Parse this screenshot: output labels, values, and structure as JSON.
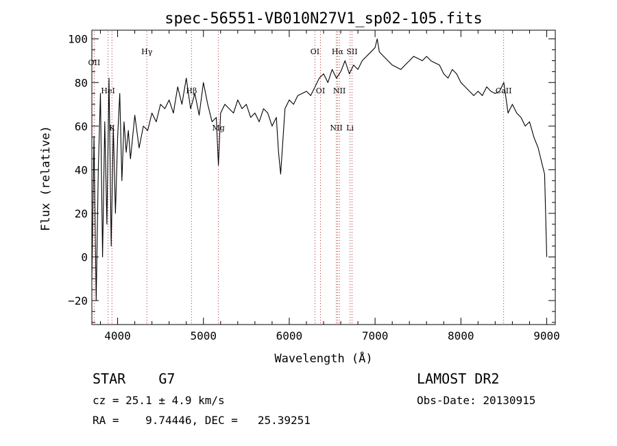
{
  "chart_data": {
    "type": "line",
    "title": "spec-56551-VB010N27V1_sp02-105.fits",
    "xlabel": "Wavelength (Å)",
    "ylabel": "Flux (relative)",
    "xlim": [
      3700,
      9100
    ],
    "ylim": [
      -31,
      104
    ],
    "xticks": [
      4000,
      5000,
      6000,
      7000,
      8000,
      9000
    ],
    "yticks": [
      -20,
      0,
      20,
      40,
      60,
      80,
      100
    ],
    "grid": false,
    "line_color": "#000000",
    "marker_color": "#b22222",
    "lines": [
      {
        "label": "OII",
        "x": 3727,
        "y": 88
      },
      {
        "label": "K",
        "x": 3934,
        "y": 58
      },
      {
        "label": "HeI",
        "x": 3889,
        "y": 75
      },
      {
        "label": "Hγ",
        "x": 4341,
        "y": 93
      },
      {
        "label": "Hβ",
        "x": 4861,
        "y": 75
      },
      {
        "label": "Mg",
        "x": 5175,
        "y": 58
      },
      {
        "label": "OI",
        "x": 6364,
        "y": 75
      },
      {
        "label": "OI",
        "x": 6300,
        "y": 93
      },
      {
        "label": "NII",
        "x": 6548,
        "y": 58
      },
      {
        "label": "NII",
        "x": 6584,
        "y": 75
      },
      {
        "label": "Hα",
        "x": 6563,
        "y": 93
      },
      {
        "label": "Li",
        "x": 6708,
        "y": 58
      },
      {
        "label": "SII",
        "x": 6731,
        "y": 93
      },
      {
        "label": "CaII",
        "x": 8498,
        "y": 75
      }
    ],
    "x": [
      3700,
      3725,
      3750,
      3775,
      3800,
      3825,
      3850,
      3875,
      3900,
      3925,
      3950,
      3975,
      4000,
      4025,
      4050,
      4075,
      4100,
      4125,
      4150,
      4175,
      4200,
      4250,
      4300,
      4350,
      4400,
      4450,
      4500,
      4550,
      4600,
      4650,
      4700,
      4750,
      4800,
      4850,
      4900,
      4950,
      5000,
      5050,
      5100,
      5150,
      5175,
      5200,
      5250,
      5300,
      5350,
      5400,
      5450,
      5500,
      5550,
      5600,
      5650,
      5700,
      5750,
      5800,
      5850,
      5875,
      5900,
      5950,
      6000,
      6050,
      6100,
      6150,
      6200,
      6250,
      6300,
      6350,
      6400,
      6450,
      6500,
      6550,
      6600,
      6650,
      6700,
      6750,
      6800,
      6850,
      6900,
      6950,
      7000,
      7025,
      7050,
      7100,
      7150,
      7200,
      7250,
      7300,
      7350,
      7400,
      7450,
      7500,
      7550,
      7600,
      7650,
      7700,
      7750,
      7800,
      7850,
      7900,
      7950,
      8000,
      8050,
      8100,
      8150,
      8200,
      8250,
      8300,
      8350,
      8400,
      8450,
      8500,
      8550,
      8600,
      8650,
      8700,
      8750,
      8800,
      8850,
      8900,
      8950,
      8975,
      9000
    ],
    "y": [
      -10,
      55,
      -20,
      40,
      75,
      0,
      62,
      15,
      82,
      5,
      60,
      20,
      55,
      75,
      35,
      62,
      48,
      58,
      45,
      55,
      65,
      50,
      60,
      58,
      66,
      62,
      70,
      68,
      72,
      66,
      78,
      70,
      82,
      68,
      75,
      65,
      80,
      70,
      62,
      64,
      42,
      66,
      70,
      68,
      66,
      72,
      68,
      70,
      64,
      66,
      62,
      68,
      66,
      60,
      64,
      48,
      38,
      68,
      72,
      70,
      74,
      75,
      76,
      74,
      78,
      82,
      84,
      80,
      86,
      82,
      85,
      90,
      84,
      88,
      86,
      90,
      92,
      94,
      96,
      100,
      94,
      92,
      90,
      88,
      87,
      86,
      88,
      90,
      92,
      91,
      90,
      92,
      90,
      89,
      88,
      84,
      82,
      86,
      84,
      80,
      78,
      76,
      74,
      76,
      74,
      78,
      76,
      75,
      76,
      80,
      66,
      70,
      66,
      64,
      60,
      62,
      55,
      50,
      42,
      38,
      0
    ]
  },
  "info": {
    "class": "STAR    G7",
    "survey": "LAMOST DR2",
    "cz": "cz = 25.1 ± 4.9 km/s",
    "obs_date": "Obs-Date: 20130915",
    "coords": "RA =    9.74446, DEC =   25.39251"
  }
}
